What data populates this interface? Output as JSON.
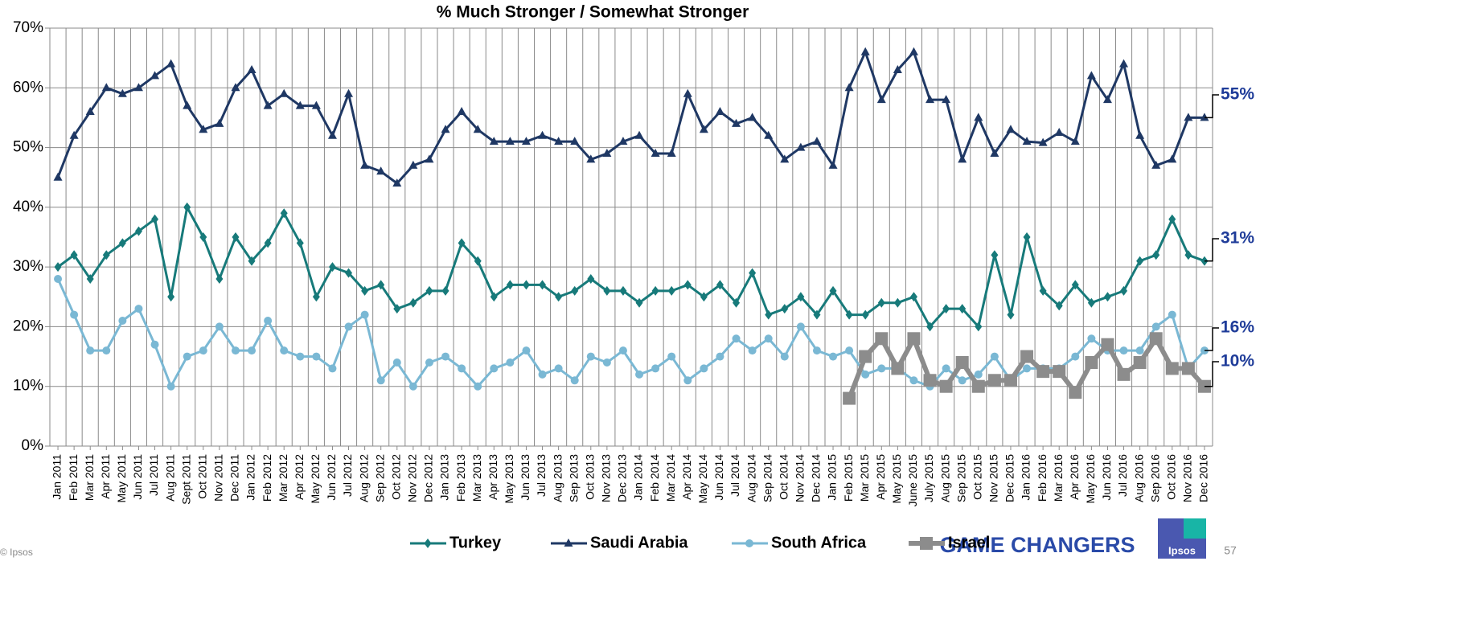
{
  "chart_data": {
    "type": "line",
    "title": "% Much Stronger / Somewhat Stronger",
    "categories": [
      "Jan 2011",
      "Feb 2011",
      "Mar 2011",
      "Apr 2011",
      "May 2011",
      "Jun 2011",
      "Jul 2011",
      "Aug 2011",
      "Sept 2011",
      "Oct 2011",
      "Nov 2011",
      "Dec 2011",
      "Jan 2012",
      "Feb 2012",
      "Mar 2012",
      "Apr 2012",
      "May 2012",
      "Jun 2012",
      "Jul 2012",
      "Aug 2012",
      "Sep 2012",
      "Oct 2012",
      "Nov 2012",
      "Dec 2012",
      "Jan 2013",
      "Feb 2013",
      "Mar 2013",
      "Apr 2013",
      "May 2013",
      "Jun 2013",
      "Jul 2013",
      "Aug 2013",
      "Sep 2013",
      "Oct 2013",
      "Nov 2013",
      "Dec 2013",
      "Jan 2014",
      "Feb 2014",
      "Mar 2014",
      "Apr 2014",
      "May 2014",
      "Jun 2014",
      "Jul 2014",
      "Aug 2014",
      "Sep 2014",
      "Oct 2014",
      "Nov 2014",
      "Dec 2014",
      "Jan 2015",
      "Feb 2015",
      "Mar 2015",
      "Apr 2015",
      "May 2015",
      "June 2015",
      "July 2015",
      "Aug 2015",
      "Sep 2015",
      "Oct 2015",
      "Nov 2015",
      "Dec 2015",
      "Jan 2016",
      "Feb 2016",
      "Mar 2016",
      "Apr 2016",
      "May 2016",
      "Jun 2016",
      "Jul 2016",
      "Aug 2016",
      "Sep 2016",
      "Oct 2016",
      "Nov 2016",
      "Dec 2016"
    ],
    "series": [
      {
        "name": "Turkey",
        "color": "#177a7a",
        "marker": "diamond",
        "values": [
          30,
          32,
          28,
          32,
          34,
          36,
          38,
          25,
          40,
          35,
          28,
          35,
          31,
          34,
          39,
          34,
          25,
          30,
          29,
          26,
          27,
          23,
          24,
          26,
          26,
          34,
          31,
          25,
          27,
          27,
          27,
          25,
          26,
          28,
          26,
          26,
          24,
          26,
          26,
          27,
          25,
          27,
          24,
          29,
          22,
          23,
          25,
          22,
          26,
          22,
          22,
          24,
          24,
          25,
          20,
          23,
          23,
          20,
          32,
          22,
          35,
          26,
          23.5,
          27,
          24,
          25,
          26,
          31,
          32,
          38,
          32,
          31
        ],
        "value_labels": [
          null,
          null,
          null,
          null,
          null,
          null,
          null,
          null,
          null,
          null,
          null,
          null,
          null,
          null,
          null,
          null,
          null,
          null,
          null,
          null,
          null,
          null,
          null,
          null,
          null,
          null,
          null,
          null,
          null,
          null,
          null,
          null,
          null,
          null,
          null,
          null,
          null,
          null,
          null,
          null,
          null,
          null,
          null,
          null,
          null,
          null,
          null,
          null,
          null,
          null,
          null,
          null,
          null,
          null,
          null,
          null,
          null,
          null,
          null,
          null,
          null,
          null,
          null,
          null,
          null,
          null,
          null,
          null,
          null,
          null,
          null,
          "31%"
        ]
      },
      {
        "name": "Saudi Arabia",
        "color": "#1f3864",
        "marker": "triangle",
        "values": [
          45,
          52,
          56,
          60,
          59,
          60,
          62,
          64,
          57,
          53,
          54,
          60,
          63,
          57,
          59,
          57,
          57,
          52,
          59,
          47,
          46,
          44,
          47,
          48,
          53,
          56,
          53,
          51,
          51,
          51,
          52,
          51,
          51,
          48,
          49,
          51,
          52,
          49,
          49,
          59,
          53,
          56,
          54,
          55,
          52,
          48,
          50,
          51,
          47,
          60,
          66,
          58,
          63,
          66,
          58,
          58,
          48,
          55,
          49,
          53,
          51,
          50.8,
          52.5,
          51,
          62,
          58,
          64,
          52,
          47,
          48,
          55,
          55
        ],
        "value_labels": [
          null,
          null,
          null,
          null,
          null,
          null,
          null,
          null,
          null,
          null,
          null,
          null,
          null,
          null,
          null,
          null,
          null,
          null,
          null,
          null,
          null,
          null,
          null,
          null,
          null,
          null,
          null,
          null,
          null,
          null,
          null,
          null,
          null,
          null,
          null,
          null,
          null,
          null,
          null,
          null,
          null,
          null,
          null,
          null,
          null,
          null,
          null,
          null,
          null,
          null,
          null,
          null,
          null,
          null,
          null,
          null,
          null,
          null,
          null,
          null,
          null,
          null,
          null,
          null,
          null,
          null,
          null,
          null,
          null,
          null,
          null,
          "55%"
        ]
      },
      {
        "name": "South Africa",
        "color": "#7ab8d4",
        "marker": "circle",
        "values": [
          28,
          22,
          16,
          16,
          21,
          23,
          17,
          10,
          15,
          16,
          20,
          16,
          16,
          21,
          16,
          15,
          15,
          13,
          20,
          22,
          11,
          14,
          10,
          14,
          15,
          13,
          10,
          13,
          14,
          16,
          12,
          13,
          11,
          15,
          14,
          16,
          12,
          13,
          15,
          11,
          13,
          15,
          18,
          16,
          18,
          15,
          20,
          16,
          15,
          16,
          12,
          13,
          13,
          11,
          10,
          13,
          11,
          12,
          15,
          11,
          13,
          13,
          13,
          15,
          18,
          16,
          16,
          16,
          20,
          22,
          13,
          16
        ],
        "value_labels": [
          null,
          null,
          null,
          null,
          null,
          null,
          null,
          null,
          null,
          null,
          null,
          null,
          null,
          null,
          null,
          null,
          null,
          null,
          null,
          null,
          null,
          null,
          null,
          null,
          null,
          null,
          null,
          null,
          null,
          null,
          null,
          null,
          null,
          null,
          null,
          null,
          null,
          null,
          null,
          null,
          null,
          null,
          null,
          null,
          null,
          null,
          null,
          null,
          null,
          null,
          null,
          null,
          null,
          null,
          null,
          null,
          null,
          null,
          null,
          null,
          null,
          null,
          null,
          null,
          null,
          null,
          null,
          null,
          null,
          null,
          null,
          "16%"
        ]
      },
      {
        "name": "Israel",
        "color": "#8c8c8c",
        "marker": "square",
        "values": [
          null,
          null,
          null,
          null,
          null,
          null,
          null,
          null,
          null,
          null,
          null,
          null,
          null,
          null,
          null,
          null,
          null,
          null,
          null,
          null,
          null,
          null,
          null,
          null,
          null,
          null,
          null,
          null,
          null,
          null,
          null,
          null,
          null,
          null,
          null,
          null,
          null,
          null,
          null,
          null,
          null,
          null,
          null,
          null,
          null,
          null,
          null,
          null,
          null,
          8,
          15,
          18,
          13,
          18,
          11,
          10,
          14,
          10,
          11,
          11,
          15,
          12.5,
          12.5,
          9,
          14,
          17,
          12,
          14,
          18,
          13,
          13,
          10
        ],
        "value_labels": [
          null,
          null,
          null,
          null,
          null,
          null,
          null,
          null,
          null,
          null,
          null,
          null,
          null,
          null,
          null,
          null,
          null,
          null,
          null,
          null,
          null,
          null,
          null,
          null,
          null,
          null,
          null,
          null,
          null,
          null,
          null,
          null,
          null,
          null,
          null,
          null,
          null,
          null,
          null,
          null,
          null,
          null,
          null,
          null,
          null,
          null,
          null,
          null,
          null,
          null,
          null,
          null,
          null,
          null,
          null,
          null,
          null,
          null,
          null,
          null,
          null,
          null,
          null,
          null,
          null,
          null,
          null,
          null,
          null,
          null,
          null,
          "10%"
        ]
      }
    ],
    "ylim": [
      0,
      70
    ],
    "yticks": [
      {
        "value": 0,
        "label": "0%"
      },
      {
        "value": 10,
        "label": "10%"
      },
      {
        "value": 20,
        "label": "20%"
      },
      {
        "value": 30,
        "label": "30%"
      },
      {
        "value": 40,
        "label": "40%"
      },
      {
        "value": 50,
        "label": "50%"
      },
      {
        "value": 60,
        "label": "60%"
      },
      {
        "value": 70,
        "label": "70%"
      }
    ],
    "grid": true
  },
  "footer": {
    "copyright": "© Ipsos",
    "brand": "GAME CHANGERS",
    "logo": "Ipsos",
    "page": "57"
  }
}
